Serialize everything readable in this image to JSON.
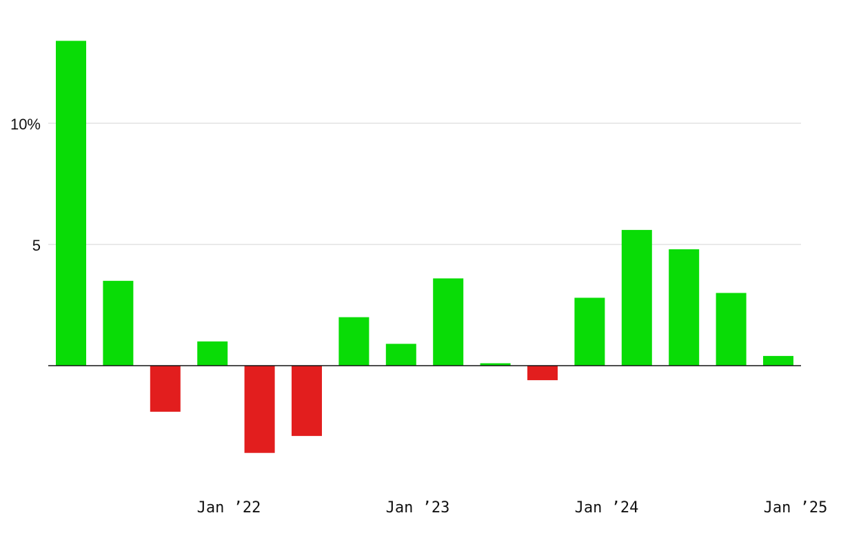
{
  "chart_data": {
    "type": "bar",
    "title": "",
    "xlabel": "",
    "ylabel": "",
    "unit": "%",
    "ylim": [
      -5,
      13.5
    ],
    "y_ticks": [
      {
        "value": 10,
        "label": "10%"
      },
      {
        "value": 5,
        "label": "5"
      }
    ],
    "x_tick_labels": [
      "Jan ’22",
      "Jan ’23",
      "Jan ’24",
      "Jan ’25"
    ],
    "grid": true,
    "legend": "none",
    "values": [
      13.4,
      3.5,
      -1.9,
      1.0,
      -3.6,
      -2.9,
      2.0,
      0.9,
      3.6,
      0.1,
      -0.6,
      2.8,
      5.6,
      4.8,
      3.0,
      0.4
    ],
    "colors": {
      "positive": "#09dc06",
      "negative": "#e21e1e",
      "grid": "#e2e2e2",
      "axis": "#111111"
    }
  }
}
